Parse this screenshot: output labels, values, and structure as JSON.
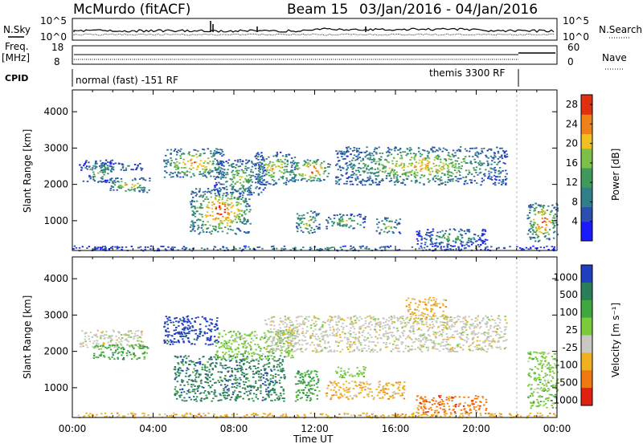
{
  "header": {
    "station": "McMurdo (fitACF)",
    "beam": "Beam 15",
    "date_range": "03/Jan/2016 - 04/Jan/2016"
  },
  "strip1": {
    "left_label": "N.Sky",
    "right_label": "N.Search",
    "left_top": "10^5",
    "left_bottom": "10^0",
    "right_top": "10^5",
    "right_bottom": "10^0"
  },
  "strip2": {
    "left_label_a": "Freq.",
    "left_label_b": "[MHz]",
    "right_label": "Nave",
    "left_top": "18",
    "left_bottom": "8",
    "right_top": "60",
    "right_bottom": "0"
  },
  "cpid": {
    "label": "CPID",
    "mode1": "normal (fast) -151 RF",
    "mode2": "themis 3300 RF"
  },
  "chart_data": [
    {
      "type": "heatmap",
      "name_id": "power-panel",
      "ylabel": "Slant Range [km]",
      "xlabel": "Time UT",
      "x_ticks": [
        "00:00",
        "04:00",
        "08:00",
        "12:00",
        "16:00",
        "20:00",
        "00:00"
      ],
      "x_range_hours": [
        0,
        24
      ],
      "y_ticks": [
        1000,
        2000,
        3000,
        4000
      ],
      "ylim": [
        180,
        4600
      ],
      "colorbar": {
        "label": "Power [dB]",
        "ticks": [
          4,
          8,
          12,
          16,
          20,
          24,
          28
        ],
        "range": [
          0,
          30
        ]
      },
      "regions": [
        {
          "t0": 0.5,
          "t1": 2.0,
          "r0": 2050,
          "r1": 2700,
          "level": 0.45
        },
        {
          "t0": 1.8,
          "t1": 3.8,
          "r0": 1800,
          "r1": 2200,
          "level": 0.65
        },
        {
          "t0": 0.3,
          "t1": 3.5,
          "r0": 2400,
          "r1": 2600,
          "level": 0.4
        },
        {
          "t0": 4.5,
          "t1": 7.5,
          "r0": 2200,
          "r1": 3000,
          "level": 0.7
        },
        {
          "t0": 5.8,
          "t1": 8.8,
          "r0": 650,
          "r1": 1900,
          "level": 0.8
        },
        {
          "t0": 7.0,
          "t1": 9.5,
          "r0": 1700,
          "r1": 2700,
          "level": 0.5
        },
        {
          "t0": 9.0,
          "t1": 11.0,
          "r0": 2000,
          "r1": 2900,
          "level": 0.6
        },
        {
          "t0": 10.8,
          "t1": 12.8,
          "r0": 2100,
          "r1": 2700,
          "level": 0.85
        },
        {
          "t0": 11.0,
          "t1": 12.2,
          "r0": 650,
          "r1": 1300,
          "level": 0.6
        },
        {
          "t0": 12.5,
          "t1": 14.5,
          "r0": 800,
          "r1": 1200,
          "level": 0.5
        },
        {
          "t0": 13.0,
          "t1": 21.5,
          "r0": 2000,
          "r1": 3050,
          "level": 0.6
        },
        {
          "t0": 15.0,
          "t1": 16.2,
          "r0": 650,
          "r1": 1100,
          "level": 0.55
        },
        {
          "t0": 17.0,
          "t1": 20.5,
          "r0": 300,
          "r1": 800,
          "level": 0.4
        },
        {
          "t0": 22.5,
          "t1": 24.0,
          "r0": 450,
          "r1": 1500,
          "level": 0.8
        },
        {
          "t0": 0.0,
          "t1": 24.0,
          "r0": 190,
          "r1": 320,
          "level": 0.35
        }
      ]
    },
    {
      "type": "heatmap",
      "name_id": "velocity-panel",
      "ylabel": "Slant Range [km]",
      "xlabel": "Time UT",
      "x_ticks": [
        "00:00",
        "04:00",
        "08:00",
        "12:00",
        "16:00",
        "20:00",
        "00:00"
      ],
      "x_range_hours": [
        0,
        24
      ],
      "y_ticks": [
        1000,
        2000,
        3000,
        4000
      ],
      "ylim": [
        180,
        4600
      ],
      "colorbar": {
        "label": "Velocity [m s⁻¹]",
        "ticks": [
          "1000",
          "500",
          "100",
          "25",
          "-25",
          "-100",
          "-500",
          "-1000"
        ],
        "colors": [
          "#1f3fbf",
          "#2a7f5a",
          "#3ea83e",
          "#7acc3a",
          "#c8c8c0",
          "#f0b020",
          "#f07810",
          "#e02010"
        ]
      },
      "regions": [
        {
          "t0": 0.3,
          "t1": 3.5,
          "r0": 2100,
          "r1": 2600,
          "cls": 4
        },
        {
          "t0": 1.0,
          "t1": 3.8,
          "r0": 1800,
          "r1": 2200,
          "cls": 2
        },
        {
          "t0": 4.5,
          "t1": 7.2,
          "r0": 2200,
          "r1": 3000,
          "cls": 0
        },
        {
          "t0": 5.0,
          "t1": 10.5,
          "r0": 650,
          "r1": 1900,
          "cls": 1
        },
        {
          "t0": 7.0,
          "t1": 11.0,
          "r0": 1800,
          "r1": 2600,
          "cls": 3
        },
        {
          "t0": 9.5,
          "t1": 21.5,
          "r0": 2000,
          "r1": 3000,
          "cls": 4
        },
        {
          "t0": 11.0,
          "t1": 12.2,
          "r0": 650,
          "r1": 1500,
          "cls": 2
        },
        {
          "t0": 12.5,
          "t1": 16.5,
          "r0": 700,
          "r1": 1200,
          "cls": 5
        },
        {
          "t0": 13.0,
          "t1": 14.5,
          "r0": 1300,
          "r1": 1600,
          "cls": 3
        },
        {
          "t0": 16.5,
          "t1": 18.5,
          "r0": 2900,
          "r1": 3500,
          "cls": 5
        },
        {
          "t0": 17.0,
          "t1": 20.5,
          "r0": 300,
          "r1": 800,
          "cls": 6
        },
        {
          "t0": 22.5,
          "t1": 24.0,
          "r0": 450,
          "r1": 2000,
          "cls": 3
        },
        {
          "t0": 0.0,
          "t1": 24.0,
          "r0": 190,
          "r1": 320,
          "cls": 5
        }
      ]
    }
  ]
}
